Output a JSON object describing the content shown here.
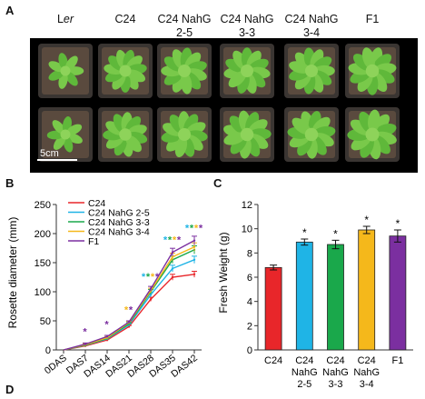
{
  "panels": {
    "a": "A",
    "b": "B",
    "c": "C",
    "d": "D"
  },
  "photo": {
    "columns": [
      {
        "line1": "",
        "line2": "Ler"
      },
      {
        "line1": "",
        "line2": "C24"
      },
      {
        "line1": "C24 NahG",
        "line2": "2-5"
      },
      {
        "line1": "C24 NahG",
        "line2": "3-3"
      },
      {
        "line1": "C24 NahG",
        "line2": "3-4"
      },
      {
        "line1": "",
        "line2": "F1"
      }
    ],
    "scale_bar": "5cm"
  },
  "colors": {
    "C24": "#e8262a",
    "NahG25": "#1fb4e6",
    "NahG33": "#1aa84b",
    "NahG34": "#f5b81b",
    "F1": "#7b2fa0"
  },
  "chart_data": [
    {
      "type": "line",
      "ylabel": "Rosette diameter (mm)",
      "categories": [
        "0DAS",
        "DAS7",
        "DAS14",
        "DAS21",
        "DAS28",
        "DAS35",
        "DAS42"
      ],
      "ylim": [
        0,
        250
      ],
      "yticks": [
        0,
        50,
        100,
        150,
        200,
        250
      ],
      "legend_position": "top-left",
      "series": [
        {
          "name": "C24",
          "values": [
            0,
            7,
            17,
            40,
            87,
            125,
            130
          ]
        },
        {
          "name": "C24 NahG 2-5",
          "values": [
            0,
            8,
            19,
            43,
            95,
            140,
            155
          ]
        },
        {
          "name": "C24 NahG 3-3",
          "values": [
            0,
            8,
            20,
            45,
            100,
            155,
            172
          ]
        },
        {
          "name": "C24 NahG 3-4",
          "values": [
            0,
            9,
            21,
            47,
            102,
            160,
            177
          ]
        },
        {
          "name": "F1",
          "values": [
            0,
            10,
            23,
            48,
            105,
            168,
            188
          ]
        }
      ],
      "significance": [
        {
          "category": "DAS7",
          "stars": [
            "F1"
          ]
        },
        {
          "category": "DAS14",
          "stars": [
            "F1"
          ]
        },
        {
          "category": "DAS21",
          "stars": [
            "C24 NahG 3-4",
            "F1"
          ]
        },
        {
          "category": "DAS28",
          "stars": [
            "C24 NahG 2-5",
            "C24 NahG 3-3",
            "C24 NahG 3-4",
            "F1"
          ]
        },
        {
          "category": "DAS35",
          "stars": [
            "C24 NahG 2-5",
            "C24 NahG 3-3",
            "C24 NahG 3-4",
            "F1"
          ]
        },
        {
          "category": "DAS42",
          "stars": [
            "C24 NahG 2-5",
            "C24 NahG 3-3",
            "C24 NahG 3-4",
            "F1"
          ]
        }
      ],
      "star": "*"
    },
    {
      "type": "bar",
      "ylabel": "Fresh Weight (g)",
      "ylim": [
        0,
        12
      ],
      "yticks": [
        0,
        2,
        4,
        6,
        8,
        10,
        12
      ],
      "categories": [
        {
          "lines": [
            "C24"
          ]
        },
        {
          "lines": [
            "C24",
            "NahG",
            "2-5"
          ]
        },
        {
          "lines": [
            "C24",
            "NahG",
            "3-3"
          ]
        },
        {
          "lines": [
            "C24",
            "NahG",
            "3-4"
          ]
        },
        {
          "lines": [
            "F1"
          ]
        }
      ],
      "values": [
        6.8,
        8.9,
        8.7,
        9.9,
        9.4
      ],
      "errors": [
        0.2,
        0.25,
        0.35,
        0.3,
        0.5
      ],
      "significant": [
        false,
        true,
        true,
        true,
        true
      ],
      "star": "*"
    }
  ]
}
